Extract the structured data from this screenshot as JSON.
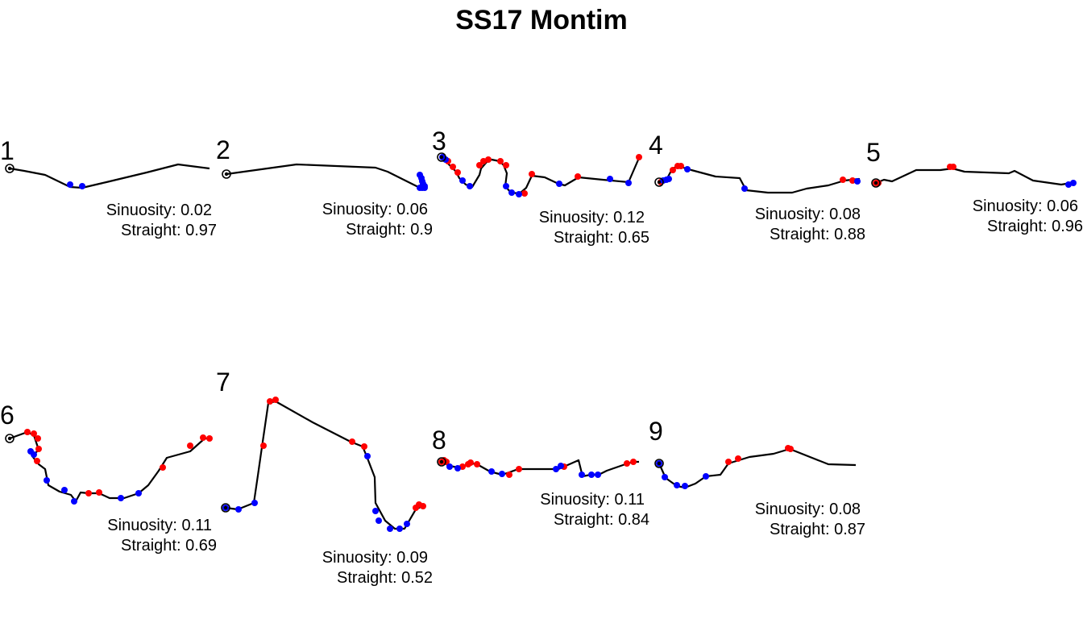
{
  "chart_data": {
    "type": "line",
    "title": "SS17 Montim",
    "grid": false,
    "colors": {
      "line": "#000000",
      "start_point": "#000000",
      "red_points": "#ff0000",
      "blue_points": "#0000ff"
    },
    "panels": [
      {
        "label": "1",
        "sinuosity_text": "Sinuosity: 0.02",
        "straight_text": "Straight: 0.97",
        "sinuosity": 0.02,
        "straightness": 0.97,
        "path": [
          [
            0,
            0
          ],
          [
            18,
            3
          ],
          [
            44,
            8
          ],
          [
            75,
            23
          ],
          [
            90,
            24
          ],
          [
            120,
            17
          ],
          [
            170,
            5
          ],
          [
            209,
            -5
          ],
          [
            248,
            0
          ]
        ],
        "red_points": [],
        "blue_points": [
          [
            75,
            20
          ],
          [
            90,
            22
          ]
        ]
      },
      {
        "label": "2",
        "sinuosity_text": "Sinuosity: 0.06",
        "straight_text": "Straight: 0.9",
        "sinuosity": 0.06,
        "straightness": 0.9,
        "path": [
          [
            0,
            0
          ],
          [
            87,
            -12
          ],
          [
            185,
            -8
          ],
          [
            200,
            -3
          ],
          [
            240,
            17
          ],
          [
            243,
            7
          ],
          [
            246,
            15
          ],
          [
            245,
            18
          ]
        ],
        "red_points": [],
        "blue_points": [
          [
            240,
            1
          ],
          [
            242,
            5
          ],
          [
            243,
            9
          ],
          [
            244,
            12
          ],
          [
            246,
            15
          ],
          [
            240,
            17
          ],
          [
            243,
            17
          ],
          [
            246,
            17
          ]
        ]
      },
      {
        "label": "3",
        "sinuosity_text": "Sinuosity: 0.12",
        "straight_text": "Straight: 0.65",
        "sinuosity": 0.12,
        "straightness": 0.65,
        "path": [
          [
            0,
            0
          ],
          [
            5,
            5
          ],
          [
            10,
            10
          ],
          [
            18,
            18
          ],
          [
            22,
            26
          ],
          [
            30,
            34
          ],
          [
            38,
            37
          ],
          [
            47,
            22
          ],
          [
            49,
            14
          ],
          [
            56,
            6
          ],
          [
            62,
            3
          ],
          [
            72,
            5
          ],
          [
            77,
            10
          ],
          [
            81,
            20
          ],
          [
            79,
            36
          ],
          [
            86,
            44
          ],
          [
            97,
            45
          ],
          [
            105,
            38
          ],
          [
            112,
            23
          ],
          [
            128,
            25
          ],
          [
            145,
            33
          ],
          [
            153,
            35
          ],
          [
            170,
            25
          ],
          [
            200,
            28
          ],
          [
            232,
            31
          ],
          [
            245,
            1
          ]
        ],
        "red_points": [
          [
            8,
            5
          ],
          [
            14,
            12
          ],
          [
            20,
            19
          ],
          [
            47,
            10
          ],
          [
            52,
            5
          ],
          [
            58,
            3
          ],
          [
            73,
            5
          ],
          [
            80,
            10
          ],
          [
            103,
            45
          ],
          [
            112,
            21
          ],
          [
            169,
            24
          ],
          [
            245,
            0
          ]
        ],
        "blue_points": [
          [
            1,
            0
          ],
          [
            5,
            3
          ],
          [
            26,
            29
          ],
          [
            35,
            36
          ],
          [
            80,
            36
          ],
          [
            87,
            44
          ],
          [
            96,
            46
          ],
          [
            146,
            33
          ],
          [
            209,
            27
          ],
          [
            232,
            32
          ]
        ]
      },
      {
        "label": "4",
        "sinuosity_text": "Sinuosity: 0.08",
        "straight_text": "Straight: 0.88",
        "sinuosity": 0.08,
        "straightness": 0.88,
        "path": [
          [
            0,
            0
          ],
          [
            5,
            -2
          ],
          [
            9,
            -3
          ],
          [
            16,
            -16
          ],
          [
            25,
            -22
          ],
          [
            30,
            -18
          ],
          [
            40,
            -15
          ],
          [
            70,
            -7
          ],
          [
            100,
            -5
          ],
          [
            108,
            10
          ],
          [
            135,
            13
          ],
          [
            165,
            13
          ],
          [
            183,
            8
          ],
          [
            210,
            4
          ],
          [
            230,
            -2
          ],
          [
            248,
            -4
          ],
          [
            248,
            0
          ]
        ],
        "red_points": [
          [
            2,
            0
          ],
          [
            17,
            -15
          ],
          [
            23,
            -20
          ],
          [
            27,
            -20
          ],
          [
            228,
            -3
          ],
          [
            240,
            -2
          ]
        ],
        "blue_points": [
          [
            5,
            -2
          ],
          [
            9,
            -3
          ],
          [
            12,
            -4
          ],
          [
            35,
            -16
          ],
          [
            106,
            8
          ],
          [
            246,
            -1
          ]
        ]
      },
      {
        "label": "5",
        "sinuosity_text": "Sinuosity: 0.06",
        "straight_text": "Straight: 0.96",
        "sinuosity": 0.06,
        "straightness": 0.96,
        "path": [
          [
            0,
            0
          ],
          [
            10,
            -4
          ],
          [
            20,
            -2
          ],
          [
            50,
            -16
          ],
          [
            80,
            -16
          ],
          [
            95,
            -18
          ],
          [
            110,
            -14
          ],
          [
            165,
            -12
          ],
          [
            172,
            -15
          ],
          [
            195,
            -3
          ],
          [
            230,
            2
          ],
          [
            248,
            -1
          ]
        ],
        "red_points": [
          [
            0,
            0
          ],
          [
            3,
            0
          ],
          [
            92,
            -20
          ],
          [
            96,
            -20
          ]
        ],
        "blue_points": [
          [
            239,
            2
          ],
          [
            245,
            0
          ]
        ]
      },
      {
        "label": "6",
        "sinuosity_text": "Sinuosity: 0.11",
        "straight_text": "Straight: 0.69",
        "sinuosity": 0.11,
        "straightness": 0.69,
        "path": [
          [
            0,
            0
          ],
          [
            22,
            -8
          ],
          [
            30,
            -4
          ],
          [
            36,
            14
          ],
          [
            28,
            22
          ],
          [
            36,
            32
          ],
          [
            44,
            38
          ],
          [
            48,
            58
          ],
          [
            62,
            66
          ],
          [
            76,
            70
          ],
          [
            82,
            78
          ],
          [
            88,
            67
          ],
          [
            98,
            68
          ],
          [
            111,
            68
          ],
          [
            124,
            74
          ],
          [
            142,
            74
          ],
          [
            160,
            68
          ],
          [
            172,
            58
          ],
          [
            185,
            40
          ],
          [
            195,
            24
          ],
          [
            224,
            16
          ],
          [
            242,
            0
          ],
          [
            248,
            0
          ]
        ],
        "red_points": [
          [
            22,
            -8
          ],
          [
            30,
            -6
          ],
          [
            35,
            0
          ],
          [
            36,
            13
          ],
          [
            34,
            28
          ],
          [
            98,
            68
          ],
          [
            111,
            67
          ],
          [
            190,
            36
          ],
          [
            224,
            9
          ],
          [
            240,
            -1
          ],
          [
            248,
            0
          ]
        ],
        "blue_points": [
          [
            26,
            16
          ],
          [
            30,
            20
          ],
          [
            46,
            52
          ],
          [
            68,
            64
          ],
          [
            80,
            78
          ],
          [
            138,
            74
          ],
          [
            160,
            68
          ]
        ]
      },
      {
        "label": "7",
        "sinuosity_text": "Sinuosity: 0.09",
        "straight_text": "Straight: 0.52",
        "sinuosity": 0.09,
        "straightness": 0.52,
        "path": [
          [
            0,
            0
          ],
          [
            15,
            2
          ],
          [
            35,
            -6
          ],
          [
            40,
            -40
          ],
          [
            45,
            -75
          ],
          [
            53,
            -130
          ],
          [
            62,
            -132
          ],
          [
            108,
            -106
          ],
          [
            155,
            -82
          ],
          [
            170,
            -76
          ],
          [
            175,
            -64
          ],
          [
            185,
            -38
          ],
          [
            186,
            -6
          ],
          [
            198,
            16
          ],
          [
            210,
            26
          ],
          [
            222,
            26
          ],
          [
            236,
            2
          ],
          [
            244,
            -2
          ]
        ],
        "red_points": [
          [
            47,
            -77
          ],
          [
            55,
            -132
          ],
          [
            62,
            -134
          ],
          [
            157,
            -82
          ],
          [
            172,
            -76
          ],
          [
            236,
            0
          ],
          [
            240,
            -4
          ],
          [
            245,
            -2
          ]
        ],
        "blue_points": [
          [
            0,
            0
          ],
          [
            16,
            2
          ],
          [
            36,
            -6
          ],
          [
            176,
            -64
          ],
          [
            186,
            4
          ],
          [
            190,
            16
          ],
          [
            204,
            26
          ],
          [
            216,
            26
          ],
          [
            225,
            20
          ]
        ]
      },
      {
        "label": "8",
        "sinuosity_text": "Sinuosity: 0.11",
        "straight_text": "Straight: 0.84",
        "sinuosity": 0.11,
        "straightness": 0.84,
        "path": [
          [
            0,
            0
          ],
          [
            10,
            5
          ],
          [
            20,
            7
          ],
          [
            28,
            5
          ],
          [
            38,
            2
          ],
          [
            44,
            3
          ],
          [
            60,
            12
          ],
          [
            75,
            16
          ],
          [
            84,
            13
          ],
          [
            95,
            9
          ],
          [
            120,
            9
          ],
          [
            145,
            9
          ],
          [
            170,
            -2
          ],
          [
            175,
            18
          ],
          [
            185,
            16
          ],
          [
            195,
            16
          ],
          [
            205,
            11
          ],
          [
            228,
            3
          ],
          [
            238,
            0
          ],
          [
            245,
            0
          ]
        ],
        "red_points": [
          [
            0,
            0
          ],
          [
            3,
            -2
          ],
          [
            6,
            0
          ],
          [
            26,
            6
          ],
          [
            33,
            3
          ],
          [
            36,
            1
          ],
          [
            44,
            3
          ],
          [
            84,
            16
          ],
          [
            96,
            9
          ],
          [
            152,
            6
          ],
          [
            230,
            2
          ],
          [
            238,
            0
          ]
        ],
        "blue_points": [
          [
            10,
            6
          ],
          [
            20,
            8
          ],
          [
            62,
            12
          ],
          [
            75,
            15
          ],
          [
            142,
            9
          ],
          [
            148,
            5
          ],
          [
            174,
            16
          ],
          [
            186,
            16
          ],
          [
            194,
            16
          ]
        ]
      },
      {
        "label": "9",
        "sinuosity_text": "Sinuosity: 0.08",
        "straight_text": "Straight: 0.87",
        "sinuosity": 0.08,
        "straightness": 0.87,
        "path": [
          [
            0,
            0
          ],
          [
            8,
            18
          ],
          [
            22,
            28
          ],
          [
            32,
            30
          ],
          [
            45,
            25
          ],
          [
            58,
            16
          ],
          [
            76,
            14
          ],
          [
            86,
            0
          ],
          [
            112,
            -8
          ],
          [
            142,
            -12
          ],
          [
            162,
            -18
          ],
          [
            210,
            1
          ],
          [
            244,
            2
          ]
        ],
        "red_points": [
          [
            86,
            -2
          ],
          [
            98,
            -6
          ],
          [
            160,
            -19
          ],
          [
            163,
            -18
          ]
        ],
        "blue_points": [
          [
            0,
            0
          ],
          [
            7,
            17
          ],
          [
            22,
            27
          ],
          [
            32,
            28
          ],
          [
            58,
            16
          ]
        ]
      }
    ]
  }
}
